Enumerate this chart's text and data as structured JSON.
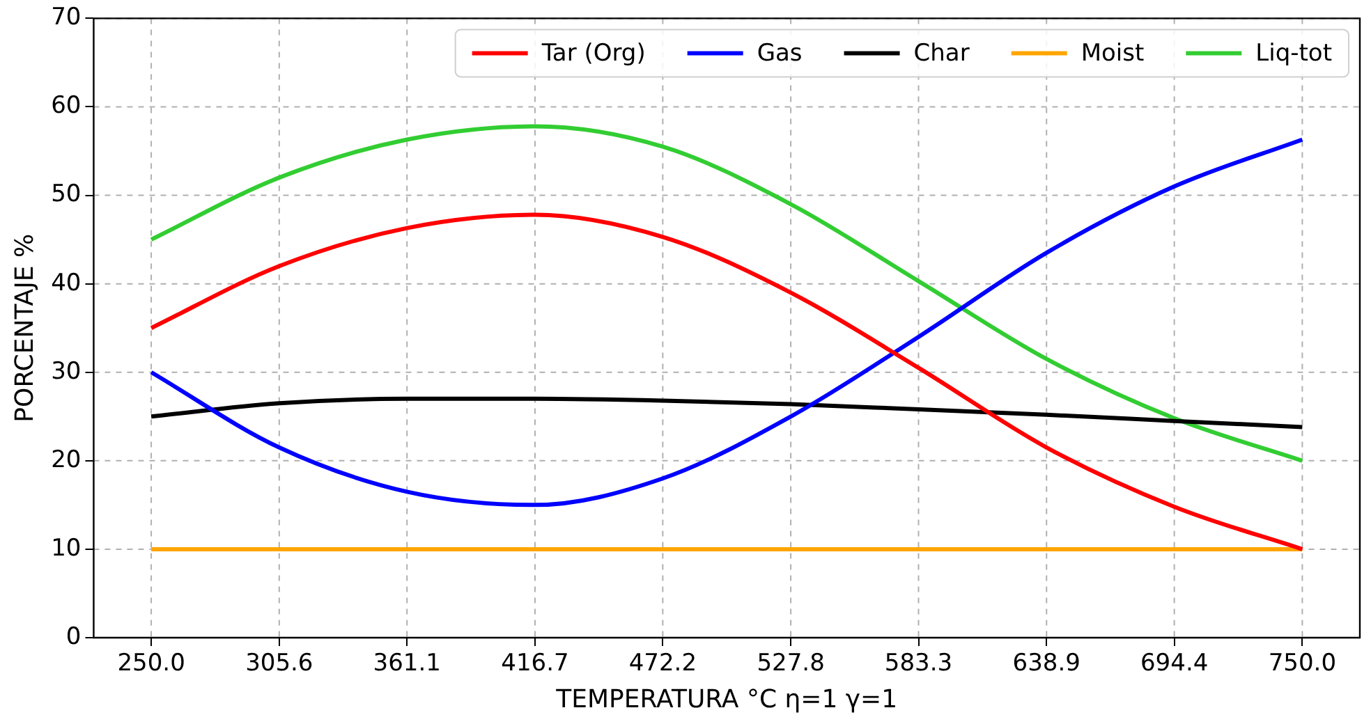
{
  "chart_data": {
    "type": "line",
    "xlabel": "TEMPERATURA °C η=1 γ=1",
    "ylabel": "PORCENTAJE %",
    "x": [
      250,
      305.6,
      361.1,
      416.7,
      472.2,
      527.8,
      583.3,
      638.9,
      694.4,
      750
    ],
    "series": [
      {
        "name": "Tar (Org)",
        "color": "#ff0000",
        "values": [
          35,
          42,
          46.3,
          47.8,
          45.3,
          39,
          30.5,
          21.5,
          14.8,
          10
        ]
      },
      {
        "name": "Gas",
        "color": "#0000ff",
        "values": [
          30,
          21.5,
          16.5,
          15,
          18,
          25,
          34,
          43.5,
          51,
          56.3
        ]
      },
      {
        "name": "Char",
        "color": "#000000",
        "values": [
          25,
          26.5,
          27,
          27,
          26.8,
          26.4,
          25.8,
          25.2,
          24.5,
          23.8
        ]
      },
      {
        "name": "Moist",
        "color": "#ffa500",
        "values": [
          10,
          10,
          10,
          10,
          10,
          10,
          10,
          10,
          10,
          10
        ]
      },
      {
        "name": "Liq-tot",
        "color": "#32cd32",
        "values": [
          45,
          52,
          56.3,
          57.8,
          55.5,
          49,
          40.3,
          31.5,
          24.8,
          20
        ]
      }
    ],
    "xlim": [
      225,
      775
    ],
    "xticks": [
      {
        "value": 250,
        "label": "250.0"
      },
      305.6,
      361.1,
      416.7,
      472.2,
      527.8,
      583.3,
      638.9,
      694.4,
      {
        "value": 750,
        "label": "750.0"
      }
    ],
    "ylim": [
      0,
      70
    ],
    "yticks": [
      0,
      10,
      20,
      30,
      40,
      50,
      60,
      70
    ],
    "grid": true,
    "legend": "top right",
    "marker": "none",
    "line_style": "solid"
  }
}
